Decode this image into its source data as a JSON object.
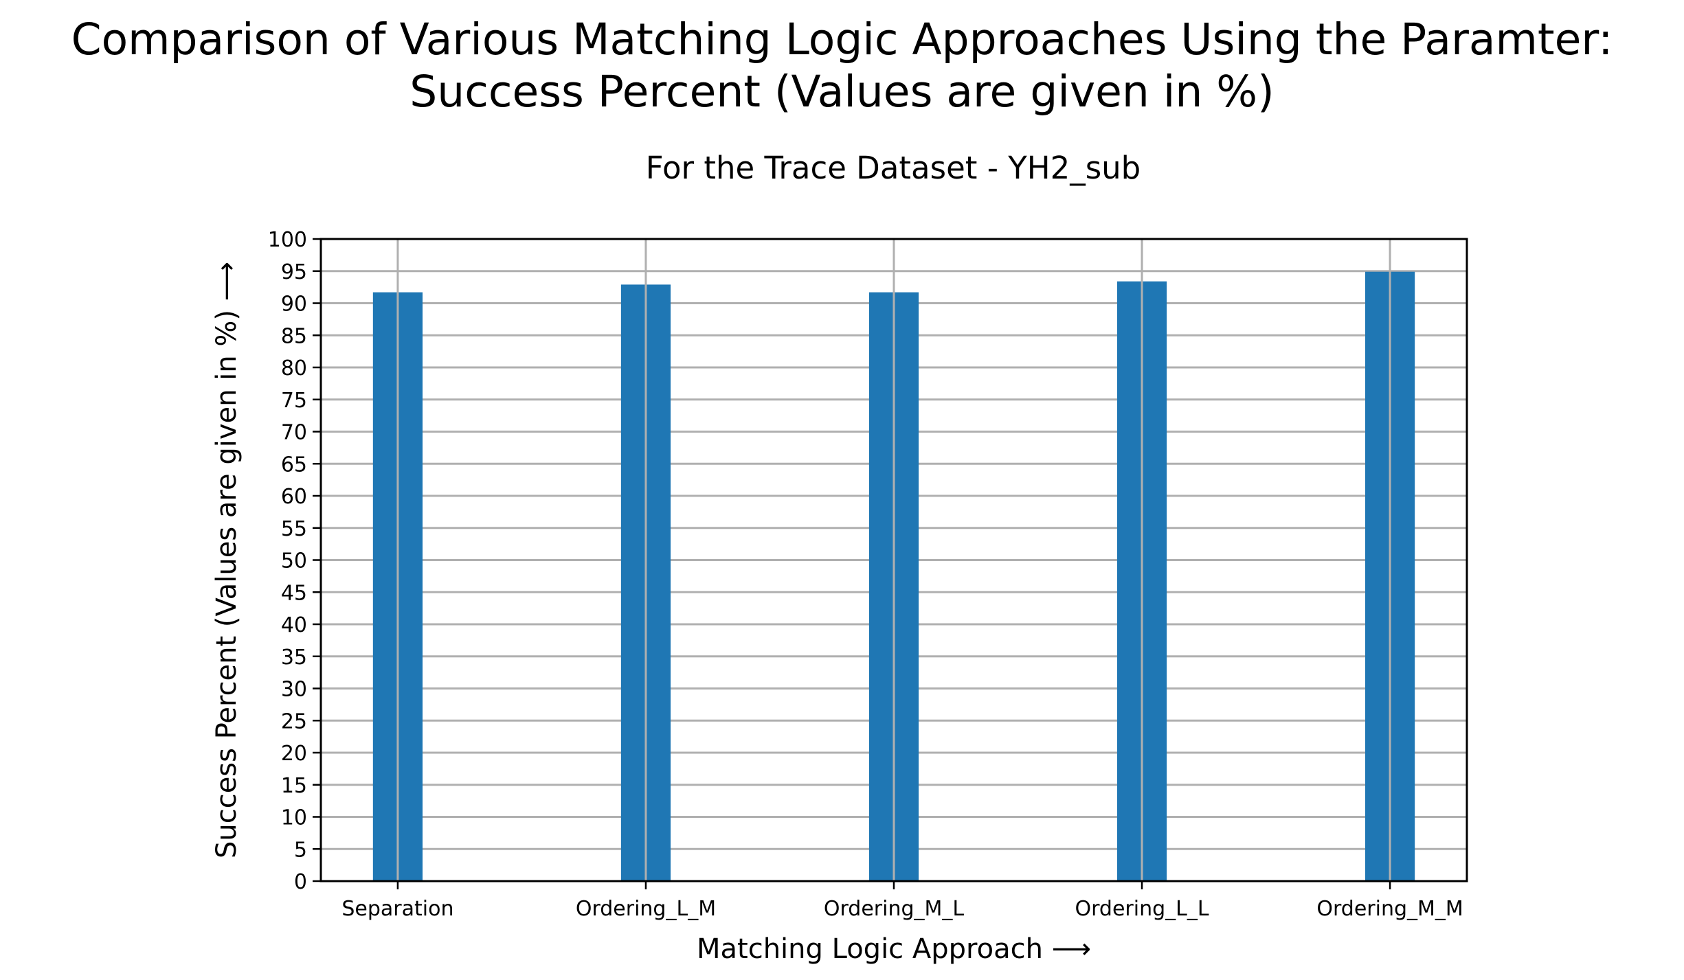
{
  "chart_data": {
    "type": "bar",
    "title_lines": [
      "Comparison of Various Matching Logic Approaches Using the Paramter:",
      "Success Percent (Values are given in %)"
    ],
    "subtitle": "For the Trace Dataset - YH2_sub",
    "xlabel": "Matching Logic Approach ⟶",
    "ylabel": "Success Percent (Values are given in %) ⟶",
    "categories": [
      "Separation",
      "Ordering_L_M",
      "Ordering_M_L",
      "Ordering_L_L",
      "Ordering_M_M"
    ],
    "values": [
      91.7,
      92.9,
      91.7,
      93.4,
      94.9
    ],
    "ylim": [
      0,
      100
    ],
    "yticks": [
      0,
      5,
      10,
      15,
      20,
      25,
      30,
      35,
      40,
      45,
      50,
      55,
      60,
      65,
      70,
      75,
      80,
      85,
      90,
      95,
      100
    ],
    "grid": true,
    "bar_color": "#1f77b4",
    "grid_color": "#b0b0b0"
  }
}
